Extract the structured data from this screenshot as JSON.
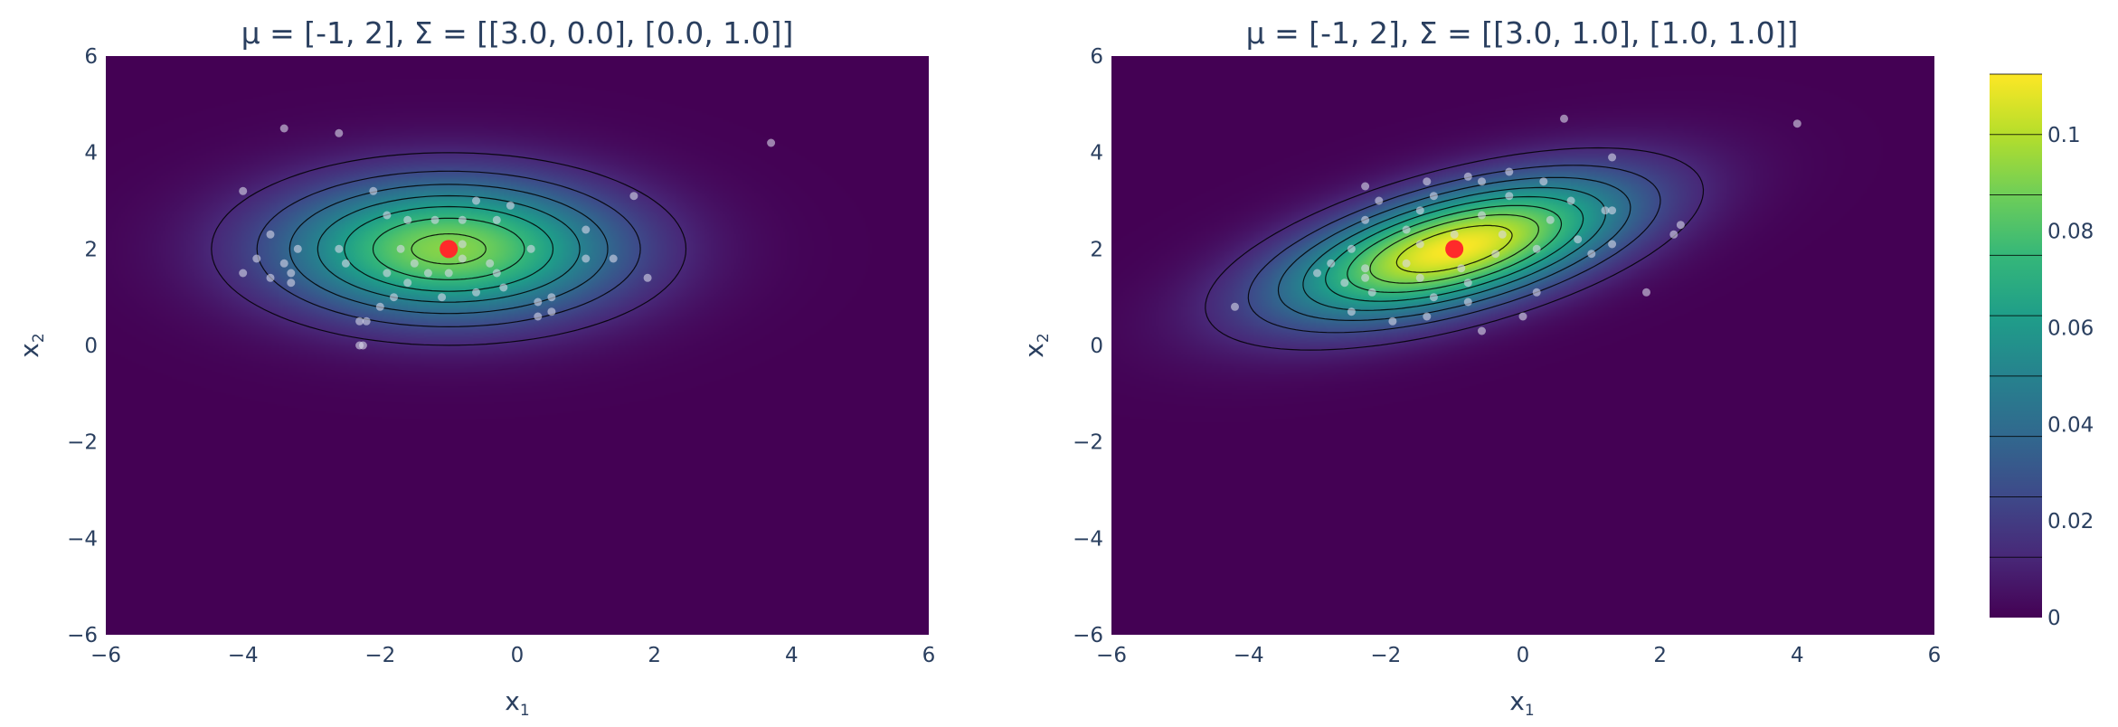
{
  "chart_data": [
    {
      "type": "heatmap",
      "subtype": "bivariate-normal-density-with-contours",
      "title": "μ = [-1, 2], Σ = [[3.0, 0.0], [0.0, 1.0]]",
      "xlabel": "x",
      "xlabel_sub": "1",
      "ylabel": "x",
      "ylabel_sub": "2",
      "xlim": [
        -6,
        6
      ],
      "ylim": [
        -6,
        6
      ],
      "xticks": [
        -6,
        -4,
        -2,
        0,
        2,
        4,
        6
      ],
      "yticks": [
        -6,
        -4,
        -2,
        0,
        2,
        4,
        6
      ],
      "xtick_labels": [
        "−6",
        "−4",
        "−2",
        "0",
        "2",
        "4",
        "6"
      ],
      "ytick_labels": [
        "−6",
        "−4",
        "−2",
        "0",
        "2",
        "4",
        "6"
      ],
      "mean": [
        -1,
        2
      ],
      "cov": [
        [
          3.0,
          0.0
        ],
        [
          0.0,
          1.0
        ]
      ],
      "contour_levels": [
        0.0125,
        0.025,
        0.0375,
        0.05,
        0.0625,
        0.075,
        0.0875,
        0.1
      ],
      "mean_marker_color": "#ff2a2a",
      "samples": [
        [
          -3.4,
          4.5
        ],
        [
          -2.6,
          4.4
        ],
        [
          3.7,
          4.2
        ],
        [
          -4.0,
          3.2
        ],
        [
          1.7,
          3.1
        ],
        [
          -2.1,
          3.2
        ],
        [
          -0.6,
          3.0
        ],
        [
          -0.1,
          2.9
        ],
        [
          -3.6,
          2.3
        ],
        [
          -1.9,
          2.7
        ],
        [
          -1.6,
          2.6
        ],
        [
          -1.2,
          2.6
        ],
        [
          -0.8,
          2.6
        ],
        [
          -0.3,
          2.6
        ],
        [
          1.0,
          2.4
        ],
        [
          -3.2,
          2.0
        ],
        [
          -2.6,
          2.0
        ],
        [
          -1.7,
          2.0
        ],
        [
          -0.8,
          2.1
        ],
        [
          0.2,
          2.0
        ],
        [
          -3.8,
          1.8
        ],
        [
          -3.4,
          1.7
        ],
        [
          -2.5,
          1.7
        ],
        [
          1.0,
          1.8
        ],
        [
          1.4,
          1.8
        ],
        [
          -1.5,
          1.7
        ],
        [
          -0.8,
          1.8
        ],
        [
          -0.4,
          1.7
        ],
        [
          -4.0,
          1.5
        ],
        [
          -3.6,
          1.4
        ],
        [
          -3.3,
          1.5
        ],
        [
          -1.9,
          1.5
        ],
        [
          -1.3,
          1.5
        ],
        [
          -1.0,
          1.5
        ],
        [
          -0.3,
          1.5
        ],
        [
          1.9,
          1.4
        ],
        [
          -3.3,
          1.3
        ],
        [
          -1.6,
          1.3
        ],
        [
          -0.6,
          1.1
        ],
        [
          -0.2,
          1.2
        ],
        [
          0.5,
          1.0
        ],
        [
          -1.8,
          1.0
        ],
        [
          -1.1,
          1.0
        ],
        [
          0.3,
          0.9
        ],
        [
          0.5,
          0.7
        ],
        [
          -2.0,
          0.8
        ],
        [
          0.3,
          0.6
        ],
        [
          -2.3,
          0.5
        ],
        [
          -2.2,
          0.5
        ],
        [
          -2.3,
          0.0
        ],
        [
          -2.25,
          0.0
        ]
      ]
    },
    {
      "type": "heatmap",
      "subtype": "bivariate-normal-density-with-contours",
      "title": "μ = [-1, 2], Σ = [[3.0, 1.0], [1.0, 1.0]]",
      "xlabel": "x",
      "xlabel_sub": "1",
      "ylabel": "x",
      "ylabel_sub": "2",
      "xlim": [
        -6,
        6
      ],
      "ylim": [
        -6,
        6
      ],
      "xticks": [
        -6,
        -4,
        -2,
        0,
        2,
        4,
        6
      ],
      "yticks": [
        -6,
        -4,
        -2,
        0,
        2,
        4,
        6
      ],
      "xtick_labels": [
        "−6",
        "−4",
        "−2",
        "0",
        "2",
        "4",
        "6"
      ],
      "ytick_labels": [
        "−6",
        "−4",
        "−2",
        "0",
        "2",
        "4",
        "6"
      ],
      "mean": [
        -1,
        2
      ],
      "cov": [
        [
          3.0,
          1.0
        ],
        [
          1.0,
          1.0
        ]
      ],
      "contour_levels": [
        0.0125,
        0.025,
        0.0375,
        0.05,
        0.0625,
        0.075,
        0.0875,
        0.1,
        0.1125
      ],
      "mean_marker_color": "#ff2a2a",
      "samples": [
        [
          0.6,
          4.7
        ],
        [
          4.0,
          4.6
        ],
        [
          1.3,
          3.9
        ],
        [
          -0.2,
          3.6
        ],
        [
          -0.8,
          3.5
        ],
        [
          -1.4,
          3.4
        ],
        [
          -2.3,
          3.3
        ],
        [
          -0.6,
          3.4
        ],
        [
          0.3,
          3.4
        ],
        [
          -2.1,
          3.0
        ],
        [
          -1.3,
          3.1
        ],
        [
          -0.2,
          3.1
        ],
        [
          0.7,
          3.0
        ],
        [
          1.2,
          2.8
        ],
        [
          1.3,
          2.8
        ],
        [
          -2.3,
          2.6
        ],
        [
          -1.5,
          2.8
        ],
        [
          -0.6,
          2.7
        ],
        [
          0.4,
          2.6
        ],
        [
          2.3,
          2.5
        ],
        [
          2.2,
          2.3
        ],
        [
          -1.7,
          2.4
        ],
        [
          -1.0,
          2.3
        ],
        [
          -0.3,
          2.3
        ],
        [
          0.8,
          2.2
        ],
        [
          1.3,
          2.1
        ],
        [
          -2.5,
          2.0
        ],
        [
          -1.5,
          2.1
        ],
        [
          -0.4,
          1.9
        ],
        [
          0.2,
          2.0
        ],
        [
          1.0,
          1.9
        ],
        [
          -2.8,
          1.7
        ],
        [
          -2.3,
          1.6
        ],
        [
          -1.7,
          1.7
        ],
        [
          -0.9,
          1.6
        ],
        [
          -3.0,
          1.5
        ],
        [
          -2.3,
          1.4
        ],
        [
          -1.5,
          1.4
        ],
        [
          -2.6,
          1.3
        ],
        [
          -0.8,
          1.3
        ],
        [
          -2.2,
          1.1
        ],
        [
          -1.3,
          1.0
        ],
        [
          0.2,
          1.1
        ],
        [
          1.8,
          1.1
        ],
        [
          -0.8,
          0.9
        ],
        [
          -4.2,
          0.8
        ],
        [
          -2.5,
          0.7
        ],
        [
          -1.9,
          0.5
        ],
        [
          -1.4,
          0.6
        ],
        [
          0.0,
          0.6
        ],
        [
          -0.6,
          0.3
        ]
      ]
    }
  ],
  "colorbar": {
    "tick_values": [
      0,
      0.02,
      0.04,
      0.06,
      0.08,
      0.1
    ],
    "tick_labels": [
      "0",
      "0.02",
      "0.04",
      "0.06",
      "0.08",
      "0.1"
    ],
    "range": [
      0,
      0.1125
    ],
    "colormap": "viridis",
    "colors": [
      "#440154",
      "#482878",
      "#3e4989",
      "#31688e",
      "#26828e",
      "#1f9e89",
      "#35b779",
      "#6ece58",
      "#b5de2b",
      "#fde725"
    ]
  }
}
